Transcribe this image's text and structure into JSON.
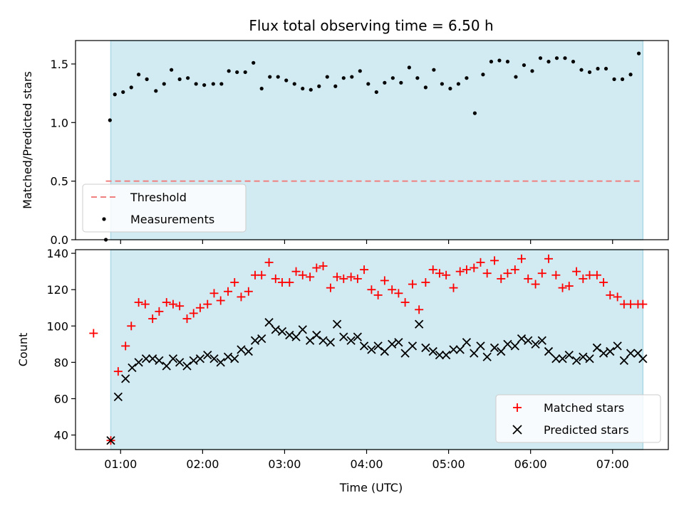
{
  "chart_data": {
    "title": "Flux total observing time = 6.50 h",
    "xlabel": "Time (UTC)",
    "x_ticks": [
      "01:00",
      "02:00",
      "03:00",
      "04:00",
      "05:00",
      "06:00",
      "07:00"
    ],
    "x_tick_hours": [
      1,
      2,
      3,
      4,
      5,
      6,
      7
    ],
    "xlim_hours": [
      0.45,
      7.68
    ],
    "shaded_span_hours": [
      0.88,
      7.37
    ],
    "colors": {
      "shade": "#add8e6",
      "threshold": "#f08080",
      "matched": "#ff0000",
      "predicted": "#000000",
      "measurement": "#000000"
    },
    "panels": [
      {
        "type": "scatter",
        "ylabel": "Matched/Predicted stars",
        "ylim": [
          0,
          1.7
        ],
        "y_ticks": [
          "0.0",
          "0.5",
          "1.0",
          "1.5"
        ],
        "y_tick_values": [
          0,
          0.5,
          1.0,
          1.5
        ],
        "threshold": {
          "name": "Threshold",
          "value": 0.5,
          "x_start_hours": 0.82,
          "x_end_hours": 7.37
        },
        "series": [
          {
            "name": "Measurements",
            "marker": "dot",
            "x_hours": [
              0.82,
              0.87,
              0.93,
              1.03,
              1.13,
              1.22,
              1.32,
              1.43,
              1.53,
              1.62,
              1.72,
              1.82,
              1.92,
              2.02,
              2.13,
              2.23,
              2.32,
              2.42,
              2.52,
              2.62,
              2.72,
              2.82,
              2.92,
              3.02,
              3.12,
              3.22,
              3.32,
              3.42,
              3.52,
              3.62,
              3.72,
              3.82,
              3.92,
              4.02,
              4.12,
              4.22,
              4.32,
              4.42,
              4.52,
              4.62,
              4.72,
              4.82,
              4.92,
              5.02,
              5.12,
              5.22,
              5.32,
              5.42,
              5.52,
              5.62,
              5.72,
              5.82,
              5.92,
              6.02,
              6.12,
              6.22,
              6.32,
              6.42,
              6.52,
              6.62,
              6.72,
              6.82,
              6.92,
              7.02,
              7.12,
              7.22,
              7.32
            ],
            "values": [
              0.0,
              1.02,
              1.24,
              1.26,
              1.3,
              1.41,
              1.37,
              1.27,
              1.33,
              1.45,
              1.37,
              1.38,
              1.33,
              1.32,
              1.33,
              1.33,
              1.44,
              1.43,
              1.43,
              1.51,
              1.29,
              1.39,
              1.39,
              1.36,
              1.33,
              1.29,
              1.28,
              1.31,
              1.39,
              1.31,
              1.38,
              1.39,
              1.44,
              1.33,
              1.26,
              1.34,
              1.38,
              1.34,
              1.47,
              1.38,
              1.3,
              1.45,
              1.33,
              1.29,
              1.33,
              1.38,
              1.08,
              1.41,
              1.52,
              1.53,
              1.52,
              1.39,
              1.49,
              1.44,
              1.55,
              1.52,
              1.55,
              1.55,
              1.52,
              1.45,
              1.43,
              1.46,
              1.46,
              1.37,
              1.37,
              1.41,
              1.59
            ]
          }
        ]
      },
      {
        "type": "scatter",
        "ylabel": "Count",
        "ylim": [
          32,
          142
        ],
        "y_ticks": [
          "40",
          "60",
          "80",
          "100",
          "120",
          "140"
        ],
        "y_tick_values": [
          40,
          60,
          80,
          100,
          120,
          140
        ],
        "series": [
          {
            "name": "Matched stars",
            "marker": "plus",
            "x_hours": [
              0.67,
              0.88,
              0.97,
              1.06,
              1.13,
              1.22,
              1.3,
              1.39,
              1.47,
              1.56,
              1.64,
              1.72,
              1.81,
              1.89,
              1.97,
              2.06,
              2.14,
              2.22,
              2.31,
              2.39,
              2.47,
              2.56,
              2.64,
              2.72,
              2.81,
              2.89,
              2.97,
              3.06,
              3.14,
              3.22,
              3.31,
              3.39,
              3.47,
              3.56,
              3.64,
              3.72,
              3.81,
              3.89,
              3.97,
              4.06,
              4.14,
              4.22,
              4.31,
              4.39,
              4.47,
              4.56,
              4.64,
              4.72,
              4.81,
              4.89,
              4.97,
              5.06,
              5.14,
              5.22,
              5.31,
              5.39,
              5.47,
              5.56,
              5.64,
              5.72,
              5.81,
              5.89,
              5.97,
              6.06,
              6.14,
              6.22,
              6.31,
              6.39,
              6.47,
              6.56,
              6.64,
              6.72,
              6.81,
              6.89,
              6.97,
              7.06,
              7.14,
              7.22,
              7.31,
              7.37
            ],
            "values": [
              96,
              37,
              75,
              89,
              100,
              113,
              112,
              104,
              108,
              113,
              112,
              111,
              104,
              107,
              110,
              112,
              118,
              114,
              119,
              124,
              116,
              119,
              128,
              128,
              135,
              126,
              124,
              124,
              130,
              128,
              127,
              132,
              133,
              121,
              127,
              126,
              127,
              126,
              131,
              120,
              117,
              125,
              120,
              118,
              113,
              123,
              109,
              124,
              131,
              129,
              128,
              121,
              130,
              131,
              132,
              135,
              129,
              136,
              126,
              129,
              131,
              137,
              126,
              123,
              129,
              137,
              128,
              121,
              122,
              130,
              126,
              128,
              128,
              124,
              117,
              116,
              112,
              112,
              112,
              112
            ]
          },
          {
            "name": "Predicted stars",
            "marker": "x",
            "x_hours": [
              0.88,
              0.97,
              1.06,
              1.14,
              1.22,
              1.31,
              1.39,
              1.47,
              1.56,
              1.64,
              1.72,
              1.81,
              1.89,
              1.97,
              2.06,
              2.14,
              2.22,
              2.31,
              2.39,
              2.47,
              2.56,
              2.64,
              2.72,
              2.81,
              2.89,
              2.97,
              3.06,
              3.14,
              3.22,
              3.31,
              3.39,
              3.47,
              3.56,
              3.64,
              3.72,
              3.81,
              3.89,
              3.97,
              4.06,
              4.14,
              4.22,
              4.31,
              4.39,
              4.47,
              4.56,
              4.64,
              4.72,
              4.81,
              4.89,
              4.97,
              5.06,
              5.14,
              5.22,
              5.31,
              5.39,
              5.47,
              5.56,
              5.64,
              5.72,
              5.81,
              5.89,
              5.97,
              6.06,
              6.14,
              6.22,
              6.31,
              6.39,
              6.47,
              6.56,
              6.64,
              6.72,
              6.81,
              6.89,
              6.97,
              7.06,
              7.14,
              7.22,
              7.31,
              7.37
            ],
            "values": [
              37,
              61,
              71,
              77,
              80,
              82,
              82,
              81,
              78,
              82,
              80,
              78,
              81,
              82,
              84,
              82,
              80,
              83,
              82,
              87,
              86,
              92,
              93,
              102,
              98,
              97,
              95,
              94,
              98,
              92,
              95,
              92,
              91,
              101,
              94,
              92,
              94,
              89,
              87,
              89,
              86,
              90,
              91,
              85,
              89,
              101,
              88,
              86,
              84,
              84,
              87,
              87,
              91,
              85,
              89,
              83,
              88,
              86,
              90,
              89,
              93,
              92,
              90,
              92,
              86,
              82,
              82,
              84,
              81,
              83,
              82,
              88,
              85,
              86,
              89,
              81,
              85,
              85,
              82
            ]
          }
        ]
      }
    ]
  }
}
